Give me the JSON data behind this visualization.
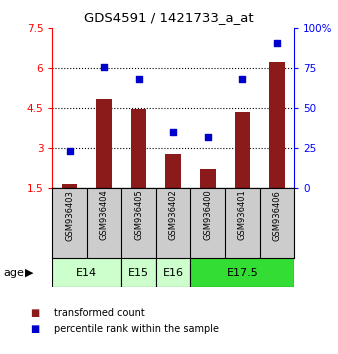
{
  "title": "GDS4591 / 1421733_a_at",
  "samples": [
    "GSM936403",
    "GSM936404",
    "GSM936405",
    "GSM936402",
    "GSM936400",
    "GSM936401",
    "GSM936406"
  ],
  "transformed_count": [
    1.62,
    4.82,
    4.48,
    2.78,
    2.22,
    4.35,
    6.22
  ],
  "percentile_rank": [
    23,
    76,
    68,
    35,
    32,
    68,
    91
  ],
  "left_ylim": [
    1.5,
    7.5
  ],
  "right_ylim": [
    0,
    100
  ],
  "left_yticks": [
    1.5,
    3.0,
    4.5,
    6.0,
    7.5
  ],
  "right_yticks": [
    0,
    25,
    50,
    75,
    100
  ],
  "left_ytick_labels": [
    "1.5",
    "3",
    "4.5",
    "6",
    "7.5"
  ],
  "right_ytick_labels": [
    "0",
    "25",
    "50",
    "75",
    "100%"
  ],
  "bar_color": "#8B1A1A",
  "dot_color": "#0000CC",
  "age_groups": [
    {
      "label": "E14",
      "start": 0,
      "end": 2,
      "color": "#ccffcc"
    },
    {
      "label": "E15",
      "start": 2,
      "end": 3,
      "color": "#ccffcc"
    },
    {
      "label": "E16",
      "start": 3,
      "end": 4,
      "color": "#ccffcc"
    },
    {
      "label": "E17.5",
      "start": 4,
      "end": 7,
      "color": "#33dd33"
    }
  ],
  "legend_items": [
    {
      "label": "transformed count",
      "color": "#8B1A1A"
    },
    {
      "label": "percentile rank within the sample",
      "color": "#0000CC"
    }
  ],
  "grid_yticks": [
    3.0,
    4.5,
    6.0
  ],
  "age_label": "age",
  "bar_bottom": 1.5,
  "sample_box_color": "#cccccc",
  "box_border_color": "#000000"
}
